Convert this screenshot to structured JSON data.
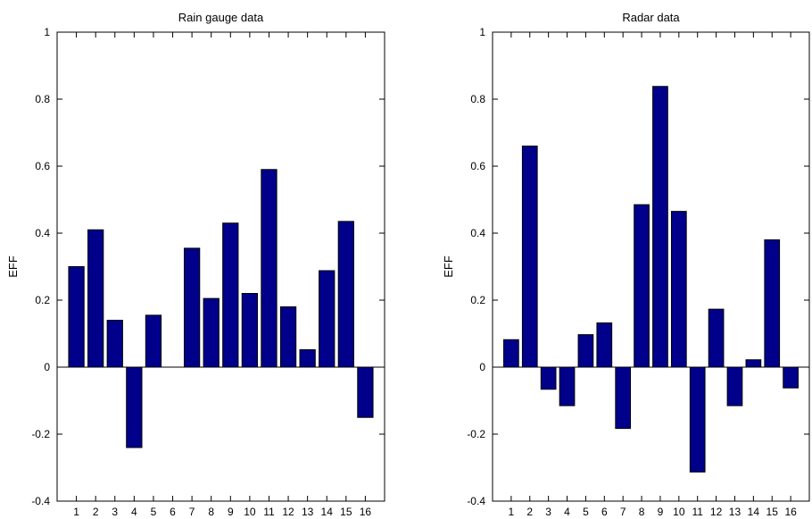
{
  "chart_data": [
    {
      "type": "bar",
      "title": "Rain gauge data",
      "xlabel": "",
      "ylabel": "EFF",
      "ylim": [
        -0.4,
        1
      ],
      "yticks": [
        -0.4,
        -0.2,
        0,
        0.2,
        0.4,
        0.6,
        0.8,
        1
      ],
      "ytick_labels": [
        "-0.4",
        "-0.2",
        "0",
        "0.2",
        "0.4",
        "0.6",
        "0.8",
        "1"
      ],
      "categories": [
        "1",
        "2",
        "3",
        "4",
        "5",
        "6",
        "7",
        "8",
        "9",
        "10",
        "11",
        "12",
        "13",
        "14",
        "15",
        "16"
      ],
      "values": [
        0.3,
        0.41,
        0.14,
        -0.24,
        0.155,
        0.0,
        0.355,
        0.205,
        0.43,
        0.22,
        0.59,
        0.18,
        0.052,
        0.288,
        0.435,
        -0.15
      ],
      "bar_color": "#00008b",
      "grid": false
    },
    {
      "type": "bar",
      "title": "Radar data",
      "xlabel": "",
      "ylabel": "EFF",
      "ylim": [
        -0.4,
        1
      ],
      "yticks": [
        -0.4,
        -0.2,
        0,
        0.2,
        0.4,
        0.6,
        0.8,
        1
      ],
      "ytick_labels": [
        "-0.4",
        "-0.2",
        "0",
        "0.2",
        "0.4",
        "0.6",
        "0.8",
        "1"
      ],
      "categories": [
        "1",
        "2",
        "3",
        "4",
        "5",
        "6",
        "7",
        "8",
        "9",
        "10",
        "11",
        "12",
        "13",
        "14",
        "15",
        "16"
      ],
      "values": [
        0.082,
        0.66,
        -0.066,
        -0.115,
        0.097,
        0.132,
        -0.183,
        0.485,
        0.838,
        0.465,
        -0.313,
        0.173,
        -0.115,
        0.022,
        0.38,
        -0.062
      ],
      "bar_color": "#00008b",
      "grid": false
    }
  ]
}
